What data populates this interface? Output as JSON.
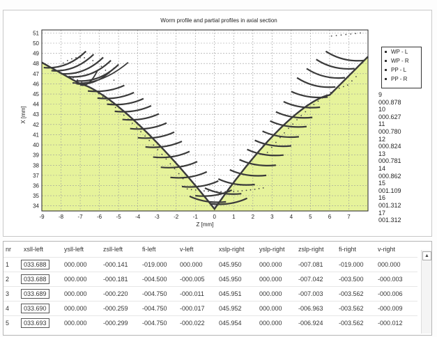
{
  "chart_data": {
    "type": "scatter",
    "title": "Worm profile and partial profiles in axial section",
    "xlabel": "Z [mm]",
    "ylabel": "X [mm]",
    "xlim": [
      -9,
      8
    ],
    "ylim": [
      33.5,
      51.3
    ],
    "x_ticks": [
      "-9",
      "-8",
      "-7",
      "-6",
      "-5",
      "-4",
      "-3",
      "-2",
      "-1",
      "0",
      "1",
      "2",
      "3",
      "4",
      "5",
      "6",
      "7"
    ],
    "y_ticks": [
      "34",
      "35",
      "36",
      "37",
      "38",
      "39",
      "40",
      "41",
      "42",
      "43",
      "44",
      "45",
      "46",
      "47",
      "48",
      "49",
      "50",
      "51"
    ],
    "grid": true,
    "legend_position": "right",
    "series": [
      {
        "name": "WP - L"
      },
      {
        "name": "WP - R"
      },
      {
        "name": "PP - L"
      },
      {
        "name": "PP - R"
      }
    ],
    "flank_colors": {
      "fill": "#e6f39b",
      "curve": "#3a3a3a",
      "dots": "#444444"
    }
  },
  "side_values": [
    "9",
    "000.878",
    "10",
    "000.627",
    "11",
    "000.780",
    "12",
    "000.824",
    "13",
    "000.781",
    "14",
    "000.862",
    "15",
    "001.109",
    "16",
    "001.312",
    "17",
    "001.312"
  ],
  "table": {
    "columns": [
      "nr",
      "xsll-left",
      "ysll-left",
      "zsll-left",
      "fi-left",
      "v-left",
      "xslp-right",
      "yslp-right",
      "zslp-right",
      "fi-right",
      "v-right"
    ],
    "rows": [
      [
        "1",
        "033.688",
        "000.000",
        "-000.141",
        "-019.000",
        "000.000",
        "045.950",
        "000.000",
        "-007.081",
        "-019.000",
        "000.000"
      ],
      [
        "2",
        "033.688",
        "000.000",
        "-000.181",
        "-004.500",
        "-000.005",
        "045.950",
        "000.000",
        "-007.042",
        "-003.500",
        "-000.003"
      ],
      [
        "3",
        "033.689",
        "000.000",
        "-000.220",
        "-004.750",
        "-000.011",
        "045.951",
        "000.000",
        "-007.003",
        "-003.562",
        "-000.006"
      ],
      [
        "4",
        "033.690",
        "000.000",
        "-000.259",
        "-004.750",
        "-000.017",
        "045.952",
        "000.000",
        "-006.963",
        "-003.562",
        "-000.009"
      ],
      [
        "5",
        "033.693",
        "000.000",
        "-000.299",
        "-004.750",
        "-000.022",
        "045.954",
        "000.000",
        "-006.924",
        "-003.562",
        "-000.012"
      ]
    ],
    "scroll_up_glyph": "▲"
  }
}
